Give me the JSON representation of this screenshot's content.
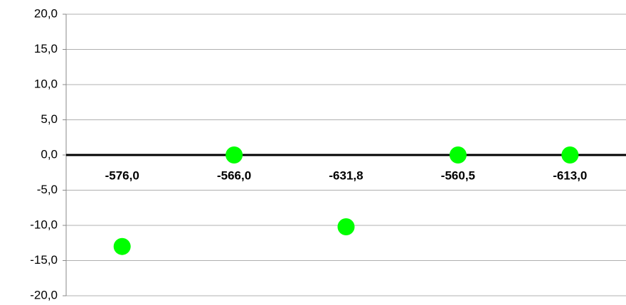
{
  "chart_data": {
    "type": "dot",
    "categories": [
      "-576,0",
      "-566,0",
      "-631,8",
      "-560,5",
      "-613,0"
    ],
    "values": [
      -13.0,
      0,
      -10.2,
      0,
      0
    ],
    "color": "#00ff00",
    "ylim": [
      -20,
      20
    ],
    "yticks": [
      {
        "value": -20,
        "label": "-20,0"
      },
      {
        "value": -15,
        "label": "-15,0"
      },
      {
        "value": -10,
        "label": "-10,0"
      },
      {
        "value": -5,
        "label": "-5,0"
      },
      {
        "value": 0,
        "label": "0,0"
      },
      {
        "value": 5,
        "label": "5,0"
      },
      {
        "value": 10,
        "label": "10,0"
      },
      {
        "value": 15,
        "label": "15,0"
      },
      {
        "value": 20,
        "label": "20,0"
      }
    ],
    "grid": true
  }
}
